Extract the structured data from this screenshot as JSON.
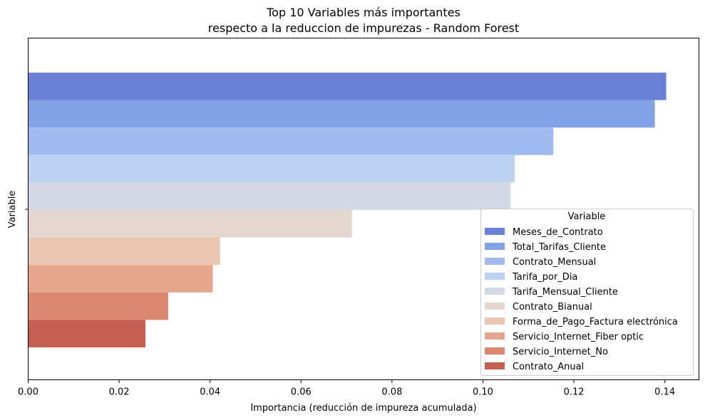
{
  "chart_data": {
    "type": "bar",
    "orientation": "horizontal",
    "title": "Top 10 Variables más importantes\nrespecto a la reduccion de impurezas - Random Forest",
    "title_lines": [
      "Top 10 Variables más importantes",
      "respecto a la reduccion de impurezas - Random Forest"
    ],
    "xlabel": "Importancia (reducción de impureza acumulada)",
    "ylabel": "Variable",
    "xlim": [
      0.0,
      0.1475
    ],
    "xticks": [
      0.0,
      0.02,
      0.04,
      0.06,
      0.08,
      0.1,
      0.12,
      0.14
    ],
    "xtick_labels": [
      "0.00",
      "0.02",
      "0.04",
      "0.06",
      "0.08",
      "0.10",
      "0.12",
      "0.14"
    ],
    "grid": false,
    "legend": {
      "title": "Variable",
      "placement": "lower-right"
    },
    "series": [
      {
        "name": "Meses_de_Contrato",
        "value": 0.1403,
        "color": "#6a80d4"
      },
      {
        "name": "Total_Tarifas_Cliente",
        "value": 0.1378,
        "color": "#82a0e4"
      },
      {
        "name": "Contrato_Mensual",
        "value": 0.1155,
        "color": "#a1bbf1"
      },
      {
        "name": "Tarifa_por_Dia",
        "value": 0.107,
        "color": "#bcd0f0"
      },
      {
        "name": "Tarifa_Mensual_Cliente",
        "value": 0.1061,
        "color": "#d3dae6"
      },
      {
        "name": "Contrato_Bianual",
        "value": 0.0712,
        "color": "#e4d7d0"
      },
      {
        "name": "Forma_de_Pago_Factura electrónica",
        "value": 0.0422,
        "color": "#eac5b1"
      },
      {
        "name": "Servicio_Internet_Fiber optic",
        "value": 0.0406,
        "color": "#e6a68e"
      },
      {
        "name": "Servicio_Internet_No",
        "value": 0.0308,
        "color": "#db8771"
      },
      {
        "name": "Contrato_Anual",
        "value": 0.0258,
        "color": "#c45f54"
      }
    ]
  }
}
